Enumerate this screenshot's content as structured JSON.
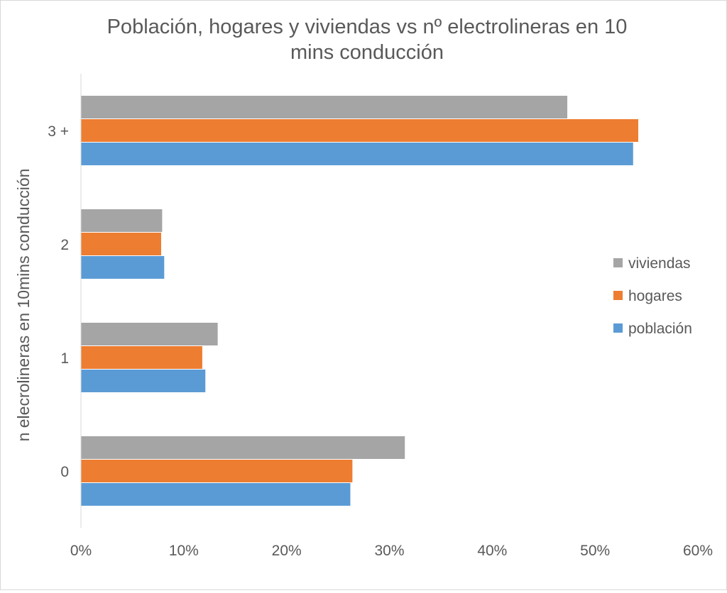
{
  "chart_data": {
    "type": "bar",
    "orientation": "horizontal",
    "title_lines": [
      "Población, hogares y viviendas vs nº electrolineras en 10",
      "mins conducción"
    ],
    "xlabel": "",
    "ylabel": "n elecrolineras en 10mins conducción",
    "categories": [
      "3 +",
      "2",
      "1",
      "0"
    ],
    "xlim": [
      0,
      60
    ],
    "xticks": [
      "0%",
      "10%",
      "20%",
      "30%",
      "40%",
      "50%",
      "60%"
    ],
    "grid": false,
    "legend_position": "right",
    "series": [
      {
        "name": "viviendas",
        "color": "#a5a5a5",
        "values": [
          47.3,
          7.9,
          13.3,
          31.5
        ]
      },
      {
        "name": "hogares",
        "color": "#ed7d31",
        "values": [
          54.2,
          7.8,
          11.8,
          26.4
        ]
      },
      {
        "name": "población",
        "color": "#5b9bd5",
        "values": [
          53.7,
          8.1,
          12.1,
          26.2
        ]
      }
    ]
  }
}
